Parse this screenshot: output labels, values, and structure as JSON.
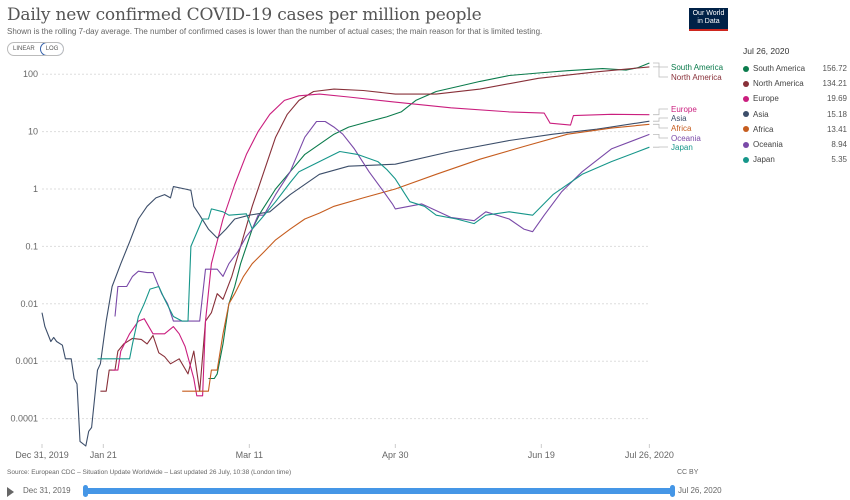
{
  "header": {
    "title": "Daily new confirmed COVID-19 cases per million people",
    "subtitle": "Shown is the rolling 7-day average. The number of confirmed cases is lower than the number of actual cases; the main reason for that is limited testing.",
    "scale_linear": "LINEAR",
    "scale_log": "LOG",
    "logo_line1": "Our World",
    "logo_line2": "in Data"
  },
  "legend": {
    "date": "Jul 26, 2020"
  },
  "footer": {
    "source": "Source: European CDC – Situation Update Worldwide – Last updated 26 July, 10:38 (London time)",
    "license": "CC BY"
  },
  "timeline": {
    "start": "Dec 31, 2019",
    "end": "Jul 26, 2020",
    "selected_start_fraction": 0,
    "selected_end_fraction": 1
  },
  "chart_data": {
    "type": "line",
    "title": "Daily new confirmed COVID-19 cases per million people",
    "xlabel": "",
    "ylabel": "",
    "yscale": "log",
    "ylim": [
      3e-05,
      200
    ],
    "xlim_days": [
      0,
      208
    ],
    "x_unit": "days since Dec 31, 2019",
    "grid": true,
    "legend_placement": "right",
    "y_ticks": [
      {
        "value": 100,
        "label": "100"
      },
      {
        "value": 10,
        "label": "10"
      },
      {
        "value": 1,
        "label": "1"
      },
      {
        "value": 0.1,
        "label": "0.1"
      },
      {
        "value": 0.01,
        "label": "0.01"
      },
      {
        "value": 0.001,
        "label": "0.001"
      },
      {
        "value": 0.0001,
        "label": "0.0001"
      }
    ],
    "x_ticks": [
      {
        "day": 0,
        "label": "Dec 31, 2019"
      },
      {
        "day": 21,
        "label": "Jan 21"
      },
      {
        "day": 71,
        "label": "Mar 11"
      },
      {
        "day": 121,
        "label": "Apr 30"
      },
      {
        "day": 171,
        "label": "Jun 19"
      },
      {
        "day": 208,
        "label": "Jul 26, 2020"
      }
    ],
    "series": [
      {
        "name": "South America",
        "color": "#0b7b4c",
        "latest": "156.72",
        "points": [
          [
            57,
            0.0005
          ],
          [
            59,
            0.0005
          ],
          [
            60,
            0.0006
          ],
          [
            62,
            0.002
          ],
          [
            64,
            0.01
          ],
          [
            66,
            0.02
          ],
          [
            68,
            0.05
          ],
          [
            70,
            0.1
          ],
          [
            72,
            0.2
          ],
          [
            75,
            0.4
          ],
          [
            80,
            1
          ],
          [
            85,
            2
          ],
          [
            90,
            4
          ],
          [
            95,
            6
          ],
          [
            100,
            9
          ],
          [
            105,
            12
          ],
          [
            112,
            15
          ],
          [
            118,
            18
          ],
          [
            123,
            22
          ],
          [
            128,
            35
          ],
          [
            135,
            50
          ],
          [
            143,
            62
          ],
          [
            150,
            75
          ],
          [
            160,
            95
          ],
          [
            170,
            105
          ],
          [
            180,
            115
          ],
          [
            192,
            125
          ],
          [
            200,
            118
          ],
          [
            204,
            130
          ],
          [
            208,
            156.72
          ]
        ]
      },
      {
        "name": "North America",
        "color": "#883039",
        "latest": "134.21",
        "points": [
          [
            20,
            0.0003
          ],
          [
            22,
            0.0003
          ],
          [
            23,
            0.0007
          ],
          [
            25,
            0.0007
          ],
          [
            26,
            0.0015
          ],
          [
            28,
            0.002
          ],
          [
            31,
            0.0025
          ],
          [
            34,
            0.0024
          ],
          [
            36,
            0.002
          ],
          [
            38,
            0.0028
          ],
          [
            40,
            0.0014
          ],
          [
            42,
            0.0012
          ],
          [
            44,
            0.0009
          ],
          [
            47,
            0.0011
          ],
          [
            50,
            0.0006
          ],
          [
            52,
            0.0015
          ],
          [
            54,
            0.0003
          ],
          [
            56,
            0.005
          ],
          [
            58,
            0.007
          ],
          [
            60,
            0.015
          ],
          [
            62,
            0.012
          ],
          [
            65,
            0.03
          ],
          [
            68,
            0.1
          ],
          [
            72,
            0.5
          ],
          [
            76,
            2
          ],
          [
            80,
            8
          ],
          [
            84,
            20
          ],
          [
            88,
            35
          ],
          [
            93,
            50
          ],
          [
            100,
            55
          ],
          [
            110,
            52
          ],
          [
            121,
            45
          ],
          [
            135,
            45
          ],
          [
            150,
            55
          ],
          [
            170,
            85
          ],
          [
            190,
            110
          ],
          [
            208,
            134.21
          ]
        ]
      },
      {
        "name": "Europe",
        "color": "#ca1e7e",
        "latest": "19.69",
        "points": [
          [
            24,
            0.0007
          ],
          [
            26,
            0.0007
          ],
          [
            27,
            0.0015
          ],
          [
            30,
            0.003
          ],
          [
            33,
            0.005
          ],
          [
            35,
            0.0055
          ],
          [
            38,
            0.003
          ],
          [
            42,
            0.003
          ],
          [
            45,
            0.004
          ],
          [
            47,
            0.003
          ],
          [
            49,
            0.0018
          ],
          [
            52,
            0.0005
          ],
          [
            53,
            0.00025
          ],
          [
            55,
            0.00025
          ],
          [
            56,
            0.005
          ],
          [
            58,
            0.05
          ],
          [
            62,
            0.3
          ],
          [
            66,
            1.2
          ],
          [
            70,
            4
          ],
          [
            74,
            10
          ],
          [
            78,
            20
          ],
          [
            83,
            35
          ],
          [
            88,
            42
          ],
          [
            95,
            45
          ],
          [
            105,
            40
          ],
          [
            120,
            33
          ],
          [
            140,
            26
          ],
          [
            160,
            22
          ],
          [
            172,
            21
          ],
          [
            174,
            14
          ],
          [
            181,
            13
          ],
          [
            182,
            19
          ],
          [
            195,
            20
          ],
          [
            208,
            19.69
          ]
        ]
      },
      {
        "name": "Asia",
        "color": "#3c4e6a",
        "latest": "15.18",
        "points": [
          [
            0,
            0.007
          ],
          [
            1,
            0.004
          ],
          [
            3,
            0.0022
          ],
          [
            4,
            0.0026
          ],
          [
            5,
            0.0022
          ],
          [
            7,
            0.0019
          ],
          [
            8,
            0.0011
          ],
          [
            10,
            0.0011
          ],
          [
            11,
            0.0005
          ],
          [
            12,
            0.0004
          ],
          [
            13,
            4e-05
          ],
          [
            15,
            3e-05
          ],
          [
            16,
            6e-05
          ],
          [
            17,
            7e-05
          ],
          [
            19,
            0.0007
          ],
          [
            20,
            0.0009
          ],
          [
            22,
            0.005
          ],
          [
            24,
            0.02
          ],
          [
            27,
            0.05
          ],
          [
            30,
            0.12
          ],
          [
            33,
            0.3
          ],
          [
            36,
            0.5
          ],
          [
            39,
            0.7
          ],
          [
            42,
            0.8
          ],
          [
            44,
            0.7
          ],
          [
            45,
            1.1
          ],
          [
            49,
            1.0
          ],
          [
            51,
            0.95
          ],
          [
            52,
            0.5
          ],
          [
            54,
            0.35
          ],
          [
            57,
            0.2
          ],
          [
            60,
            0.14
          ],
          [
            63,
            0.2
          ],
          [
            66,
            0.3
          ],
          [
            71,
            0.35
          ],
          [
            78,
            0.4
          ],
          [
            85,
            0.8
          ],
          [
            95,
            1.8
          ],
          [
            105,
            2.5
          ],
          [
            121,
            2.7
          ],
          [
            140,
            4.5
          ],
          [
            160,
            7
          ],
          [
            175,
            9
          ],
          [
            190,
            11
          ],
          [
            208,
            15.18
          ]
        ]
      },
      {
        "name": "Africa",
        "color": "#c65d1f",
        "latest": "13.41",
        "points": [
          [
            48,
            0.0003
          ],
          [
            57,
            0.0003
          ],
          [
            58,
            0.0007
          ],
          [
            60,
            0.0007
          ],
          [
            62,
            0.003
          ],
          [
            64,
            0.01
          ],
          [
            66,
            0.015
          ],
          [
            69,
            0.03
          ],
          [
            72,
            0.05
          ],
          [
            76,
            0.08
          ],
          [
            80,
            0.13
          ],
          [
            85,
            0.2
          ],
          [
            90,
            0.3
          ],
          [
            95,
            0.38
          ],
          [
            100,
            0.5
          ],
          [
            110,
            0.7
          ],
          [
            121,
            1.0
          ],
          [
            135,
            1.8
          ],
          [
            150,
            3.3
          ],
          [
            165,
            5.5
          ],
          [
            180,
            9
          ],
          [
            195,
            11.5
          ],
          [
            208,
            13.41
          ]
        ]
      },
      {
        "name": "Oceania",
        "color": "#7a4aa8",
        "latest": "8.94",
        "points": [
          [
            25,
            0.006
          ],
          [
            26,
            0.02
          ],
          [
            29,
            0.02
          ],
          [
            31,
            0.03
          ],
          [
            33,
            0.037
          ],
          [
            36,
            0.035
          ],
          [
            38,
            0.035
          ],
          [
            41,
            0.015
          ],
          [
            43,
            0.01
          ],
          [
            45,
            0.005
          ],
          [
            54,
            0.005
          ],
          [
            56,
            0.04
          ],
          [
            60,
            0.04
          ],
          [
            62,
            0.03
          ],
          [
            64,
            0.05
          ],
          [
            67,
            0.08
          ],
          [
            70,
            0.15
          ],
          [
            72,
            0.2
          ],
          [
            74,
            0.35
          ],
          [
            76,
            0.35
          ],
          [
            80,
            0.8
          ],
          [
            85,
            2
          ],
          [
            90,
            8
          ],
          [
            94,
            15
          ],
          [
            97,
            15
          ],
          [
            100,
            12
          ],
          [
            103,
            9
          ],
          [
            107,
            5
          ],
          [
            112,
            2
          ],
          [
            117,
            0.9
          ],
          [
            120,
            0.55
          ],
          [
            121,
            0.45
          ],
          [
            130,
            0.55
          ],
          [
            140,
            0.32
          ],
          [
            148,
            0.28
          ],
          [
            152,
            0.4
          ],
          [
            160,
            0.3
          ],
          [
            165,
            0.2
          ],
          [
            168,
            0.18
          ],
          [
            172,
            0.35
          ],
          [
            178,
            0.9
          ],
          [
            185,
            2
          ],
          [
            195,
            5
          ],
          [
            208,
            8.94
          ]
        ]
      },
      {
        "name": "Japan",
        "color": "#16968a",
        "latest": "5.35",
        "points": [
          [
            19,
            0.0011
          ],
          [
            30,
            0.0011
          ],
          [
            31,
            0.002
          ],
          [
            33,
            0.006
          ],
          [
            35,
            0.01
          ],
          [
            37,
            0.018
          ],
          [
            40,
            0.02
          ],
          [
            42,
            0.012
          ],
          [
            45,
            0.006
          ],
          [
            48,
            0.005
          ],
          [
            50,
            0.005
          ],
          [
            51,
            0.1
          ],
          [
            55,
            0.3
          ],
          [
            57,
            0.3
          ],
          [
            58,
            0.45
          ],
          [
            62,
            0.4
          ],
          [
            64,
            0.35
          ],
          [
            70,
            0.37
          ],
          [
            72,
            0.2
          ],
          [
            75,
            0.3
          ],
          [
            80,
            0.6
          ],
          [
            85,
            1.3
          ],
          [
            88,
            2
          ],
          [
            95,
            3
          ],
          [
            102,
            4.5
          ],
          [
            108,
            4
          ],
          [
            115,
            3
          ],
          [
            118,
            2.2
          ],
          [
            121,
            1.5
          ],
          [
            126,
            0.6
          ],
          [
            131,
            0.5
          ],
          [
            135,
            0.35
          ],
          [
            142,
            0.3
          ],
          [
            148,
            0.25
          ],
          [
            152,
            0.35
          ],
          [
            160,
            0.4
          ],
          [
            168,
            0.35
          ],
          [
            175,
            0.8
          ],
          [
            185,
            1.8
          ],
          [
            195,
            3
          ],
          [
            208,
            5.35
          ]
        ]
      }
    ]
  }
}
